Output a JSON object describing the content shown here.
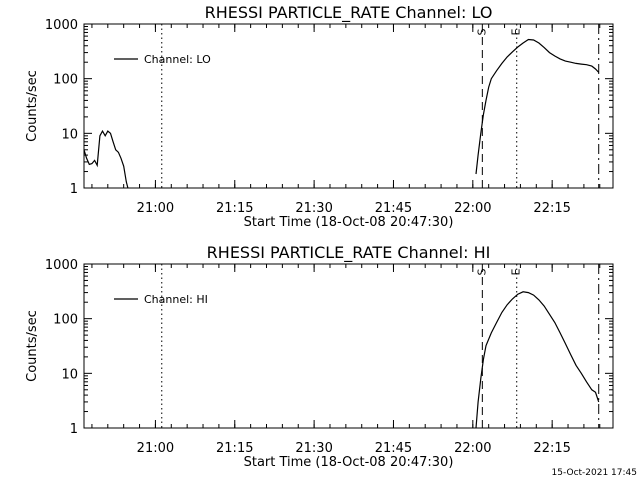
{
  "footer": {
    "timestamp": "15-Oct-2021 17:45"
  },
  "chart_data": [
    {
      "type": "line",
      "title": "RHESSI PARTICLE_RATE Channel: LO",
      "xlabel": "Start Time (18-Oct-08 20:47:30)",
      "ylabel": "Counts/sec",
      "x_unit": "minutes after 20:47:30",
      "xlim": [
        0,
        100
      ],
      "ylim": [
        1,
        1000
      ],
      "yscale": "log",
      "x_ticks": [
        {
          "x": 13.5,
          "label": "21:00"
        },
        {
          "x": 28.5,
          "label": "21:15"
        },
        {
          "x": 43.5,
          "label": "21:30"
        },
        {
          "x": 58.5,
          "label": "21:45"
        },
        {
          "x": 73.5,
          "label": "22:00"
        },
        {
          "x": 88.5,
          "label": "22:15"
        }
      ],
      "y_ticks": [
        {
          "y": 1,
          "label": "1"
        },
        {
          "y": 10,
          "label": "10"
        },
        {
          "y": 100,
          "label": "100"
        },
        {
          "y": 1000,
          "label": "1000"
        }
      ],
      "legend": {
        "position": "top-left",
        "entries": [
          "Channel: LO"
        ]
      },
      "vlines": [
        {
          "x": 14.7,
          "style": "dotted",
          "label": ""
        },
        {
          "x": 75.3,
          "style": "dashed",
          "label": "S"
        },
        {
          "x": 81.8,
          "style": "dotted",
          "label": "E"
        },
        {
          "x": 97.3,
          "style": "dashdot",
          "label": ""
        }
      ],
      "series": [
        {
          "name": "Channel: LO",
          "segments": [
            [
              [
                0,
                5
              ],
              [
                0.5,
                3.5
              ],
              [
                1,
                2.7
              ],
              [
                1.5,
                2.8
              ],
              [
                2,
                3.2
              ],
              [
                2.5,
                2.6
              ],
              [
                3,
                9
              ],
              [
                3.5,
                11
              ],
              [
                4,
                9
              ],
              [
                4.5,
                11
              ],
              [
                5,
                10
              ],
              [
                5.5,
                7
              ],
              [
                6,
                5
              ],
              [
                6.5,
                4.5
              ],
              [
                7,
                3.5
              ],
              [
                7.5,
                2.5
              ],
              [
                8,
                1.3
              ],
              [
                8.3,
                1
              ]
            ],
            [
              [
                74.1,
                1.8
              ],
              [
                74.5,
                4
              ],
              [
                75,
                10
              ],
              [
                75.5,
                22
              ],
              [
                76,
                40
              ],
              [
                76.5,
                70
              ],
              [
                77,
                100
              ],
              [
                78,
                140
              ],
              [
                79,
                190
              ],
              [
                80,
                250
              ],
              [
                81,
                310
              ],
              [
                82,
                380
              ],
              [
                83,
                450
              ],
              [
                84,
                520
              ],
              [
                85,
                510
              ],
              [
                86,
                450
              ],
              [
                87,
                370
              ],
              [
                88,
                300
              ],
              [
                89,
                260
              ],
              [
                90,
                230
              ],
              [
                91,
                210
              ],
              [
                92,
                200
              ],
              [
                93,
                190
              ],
              [
                94,
                185
              ],
              [
                95,
                180
              ],
              [
                96,
                170
              ],
              [
                96.7,
                150
              ],
              [
                97.3,
                130
              ]
            ]
          ]
        }
      ]
    },
    {
      "type": "line",
      "title": "RHESSI PARTICLE_RATE Channel: HI",
      "xlabel": "Start Time (18-Oct-08 20:47:30)",
      "ylabel": "Counts/sec",
      "x_unit": "minutes after 20:47:30",
      "xlim": [
        0,
        100
      ],
      "ylim": [
        1,
        1000
      ],
      "yscale": "log",
      "x_ticks": [
        {
          "x": 13.5,
          "label": "21:00"
        },
        {
          "x": 28.5,
          "label": "21:15"
        },
        {
          "x": 43.5,
          "label": "21:30"
        },
        {
          "x": 58.5,
          "label": "21:45"
        },
        {
          "x": 73.5,
          "label": "22:00"
        },
        {
          "x": 88.5,
          "label": "22:15"
        }
      ],
      "y_ticks": [
        {
          "y": 1,
          "label": "1"
        },
        {
          "y": 10,
          "label": "10"
        },
        {
          "y": 100,
          "label": "100"
        },
        {
          "y": 1000,
          "label": "1000"
        }
      ],
      "legend": {
        "position": "top-left",
        "entries": [
          "Channel: HI"
        ]
      },
      "vlines": [
        {
          "x": 14.7,
          "style": "dotted",
          "label": ""
        },
        {
          "x": 75.3,
          "style": "dashed",
          "label": "S"
        },
        {
          "x": 81.8,
          "style": "dotted",
          "label": "E"
        },
        {
          "x": 97.3,
          "style": "dashdot",
          "label": ""
        }
      ],
      "series": [
        {
          "name": "Channel: HI",
          "segments": [
            [
              [
                74.1,
                1
              ],
              [
                74.5,
                3
              ],
              [
                75,
                8
              ],
              [
                75.5,
                18
              ],
              [
                76,
                32
              ],
              [
                77,
                55
              ],
              [
                78,
                85
              ],
              [
                79,
                130
              ],
              [
                80,
                180
              ],
              [
                81,
                230
              ],
              [
                82,
                280
              ],
              [
                83,
                310
              ],
              [
                84,
                300
              ],
              [
                85,
                270
              ],
              [
                86,
                220
              ],
              [
                87,
                170
              ],
              [
                88,
                120
              ],
              [
                89,
                85
              ],
              [
                90,
                55
              ],
              [
                91,
                35
              ],
              [
                92,
                22
              ],
              [
                93,
                14
              ],
              [
                94,
                10
              ],
              [
                95,
                7
              ],
              [
                96,
                5
              ],
              [
                96.7,
                4.5
              ],
              [
                97.3,
                3
              ]
            ]
          ]
        }
      ]
    }
  ]
}
